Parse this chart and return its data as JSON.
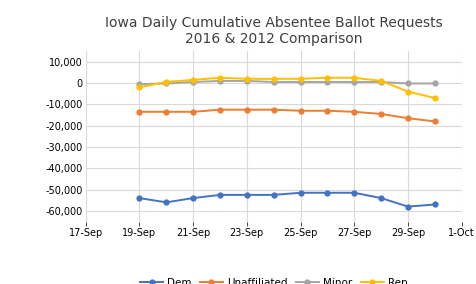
{
  "title": "Iowa Daily Cumulative Absentee Ballot Requests\n2016 & 2012 Comparison",
  "x_labels": [
    "17-Sep",
    "19-Sep",
    "21-Sep",
    "23-Sep",
    "25-Sep",
    "27-Sep",
    "29-Sep",
    "1-Oct"
  ],
  "x_tick_positions": [
    0,
    2,
    4,
    6,
    8,
    10,
    12,
    14
  ],
  "series_order": [
    "Dem",
    "Unaffiliated",
    "Minor",
    "Rep"
  ],
  "series": {
    "Dem": {
      "color": "#4472C4",
      "x": [
        2,
        3,
        4,
        5,
        6,
        7,
        8,
        9,
        10,
        11,
        12,
        13
      ],
      "y": [
        -54000,
        -56000,
        -54000,
        -52500,
        -52500,
        -52500,
        -51500,
        -51500,
        -51500,
        -54000,
        -58000,
        -57000
      ]
    },
    "Unaffiliated": {
      "color": "#ED7D31",
      "x": [
        2,
        3,
        4,
        5,
        6,
        7,
        8,
        9,
        10,
        11,
        12,
        13
      ],
      "y": [
        -13500,
        -13500,
        -13500,
        -12500,
        -12500,
        -12500,
        -13000,
        -13000,
        -13500,
        -14500,
        -16500,
        -18000
      ]
    },
    "Minor": {
      "color": "#A5A5A5",
      "x": [
        2,
        3,
        4,
        5,
        6,
        7,
        8,
        9,
        10,
        11,
        12,
        13
      ],
      "y": [
        -500,
        -200,
        500,
        1000,
        1000,
        500,
        500,
        500,
        500,
        500,
        -200,
        -200
      ]
    },
    "Rep": {
      "color": "#FFC000",
      "x": [
        2,
        3,
        4,
        5,
        6,
        7,
        8,
        9,
        10,
        11,
        12,
        13
      ],
      "y": [
        -2000,
        500,
        1500,
        2500,
        2000,
        2000,
        2000,
        2500,
        2500,
        1000,
        -4000,
        -7000
      ]
    }
  },
  "ylim": [
    -65000,
    15000
  ],
  "yticks": [
    -60000,
    -50000,
    -40000,
    -30000,
    -20000,
    -10000,
    0,
    10000
  ],
  "xlim": [
    0,
    14
  ],
  "background_color": "#FFFFFF",
  "grid_color": "#D9D9D9",
  "title_fontsize": 10,
  "tick_fontsize": 7,
  "legend_fontsize": 7.5,
  "marker_size": 3.5,
  "line_width": 1.4
}
